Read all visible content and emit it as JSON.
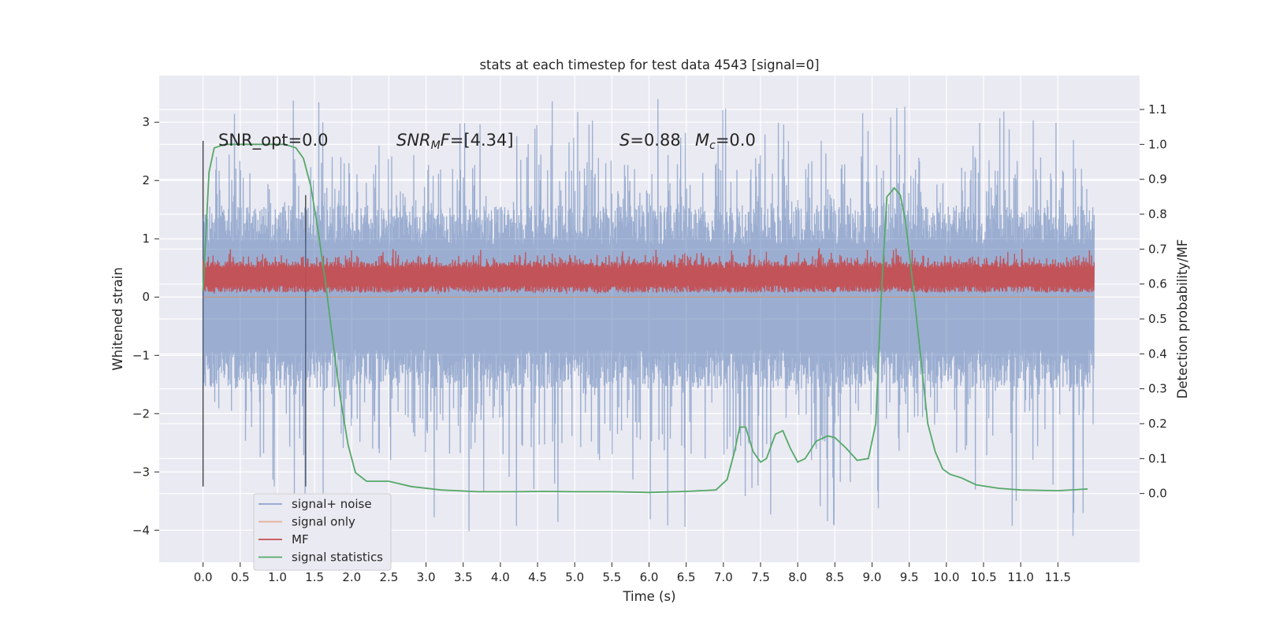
{
  "chart_data": {
    "type": "line",
    "title": "stats at each timestep for test data 4543 [signal=0]",
    "xlabel": "Time (s)",
    "ylabel": "Whitened strain",
    "y2label": "Detection probability/MF",
    "xlim": [
      -0.59,
      12.6
    ],
    "ylim": [
      -4.55,
      3.8
    ],
    "y2lim": [
      -0.197,
      1.197
    ],
    "xticks": [
      0.0,
      0.5,
      1.0,
      1.5,
      2.0,
      2.5,
      3.0,
      3.5,
      4.0,
      4.5,
      5.0,
      5.5,
      6.0,
      6.5,
      7.0,
      7.5,
      8.0,
      8.5,
      9.0,
      9.5,
      10.0,
      10.5,
      11.0,
      11.5
    ],
    "xtick_labels": [
      "0.0",
      "0.5",
      "1.0",
      "1.5",
      "2.0",
      "2.5",
      "3.0",
      "3.5",
      "4.0",
      "4.5",
      "5.0",
      "5.5",
      "6.0",
      "6.5",
      "7.0",
      "7.5",
      "8.0",
      "8.5",
      "9.0",
      "9.5",
      "10.0",
      "10.5",
      "11.0",
      "11.5"
    ],
    "yticks": [
      3,
      2,
      1,
      0,
      -1,
      -2,
      -3,
      -4
    ],
    "ytick_labels": [
      "3",
      "2",
      "1",
      "0",
      "−1",
      "−2",
      "−3",
      "−4"
    ],
    "y2ticks": [
      1.1,
      1.0,
      0.9,
      0.8,
      0.7,
      0.6,
      0.5,
      0.4,
      0.3,
      0.2,
      0.1,
      0.0
    ],
    "y2tick_labels": [
      "1.1",
      "1.0",
      "0.9",
      "0.8",
      "0.7",
      "0.6",
      "0.5",
      "0.4",
      "0.3",
      "0.2",
      "0.1",
      "0.0"
    ],
    "grid": true,
    "legend_location": "lower-left",
    "annotations": {
      "snr_opt": "SNR_opt=0.0",
      "snr_mf": "=[4.34]",
      "s_mc_s": "=0.88",
      "s_mc_mc": "=0.0"
    },
    "vlines": [
      {
        "x": 0.0,
        "ymin": -3.25,
        "ymax": 2.68
      },
      {
        "x": 1.38,
        "ymin": -3.25,
        "ymax": 1.75
      }
    ],
    "series": [
      {
        "name": "signal+ noise",
        "color": "#4c72b0",
        "style": "noise band",
        "x_range": [
          0.0,
          11.99
        ],
        "typical_range": [
          -1.5,
          1.5
        ],
        "extreme_range": [
          -4.1,
          3.45
        ]
      },
      {
        "name": "signal only",
        "color": "#dd8452",
        "style": "flat",
        "values": [
          0
        ]
      },
      {
        "name": "MF",
        "color": "#c44e52",
        "style": "noise band",
        "x_range": [
          0.0,
          11.99
        ],
        "typical_range": [
          0.1,
          0.6
        ],
        "extreme_range": [
          0.05,
          0.85
        ]
      },
      {
        "name": "signal statistics",
        "color": "#55a868",
        "axis": "right",
        "x": [
          0.0,
          0.08,
          0.15,
          0.3,
          0.5,
          0.8,
          1.1,
          1.25,
          1.35,
          1.45,
          1.55,
          1.65,
          1.75,
          1.85,
          1.95,
          2.05,
          2.2,
          2.5,
          2.8,
          3.2,
          3.7,
          4.2,
          4.6,
          5.0,
          5.5,
          6.0,
          6.5,
          6.9,
          7.05,
          7.15,
          7.22,
          7.3,
          7.4,
          7.5,
          7.58,
          7.7,
          7.8,
          7.9,
          8.0,
          8.1,
          8.25,
          8.4,
          8.5,
          8.65,
          8.8,
          8.95,
          9.05,
          9.12,
          9.2,
          9.3,
          9.38,
          9.45,
          9.55,
          9.65,
          9.75,
          9.85,
          9.95,
          10.05,
          10.2,
          10.4,
          10.7,
          11.0,
          11.5,
          11.9
        ],
        "values": [
          0.58,
          0.92,
          0.99,
          1.0,
          1.0,
          1.0,
          1.0,
          0.99,
          0.96,
          0.88,
          0.75,
          0.6,
          0.43,
          0.27,
          0.14,
          0.06,
          0.035,
          0.035,
          0.02,
          0.01,
          0.005,
          0.005,
          0.006,
          0.005,
          0.005,
          0.003,
          0.006,
          0.01,
          0.04,
          0.12,
          0.19,
          0.19,
          0.12,
          0.09,
          0.1,
          0.17,
          0.18,
          0.13,
          0.09,
          0.1,
          0.15,
          0.165,
          0.16,
          0.13,
          0.095,
          0.1,
          0.2,
          0.55,
          0.85,
          0.875,
          0.855,
          0.78,
          0.6,
          0.4,
          0.2,
          0.12,
          0.07,
          0.055,
          0.045,
          0.025,
          0.015,
          0.01,
          0.008,
          0.013
        ]
      }
    ]
  }
}
